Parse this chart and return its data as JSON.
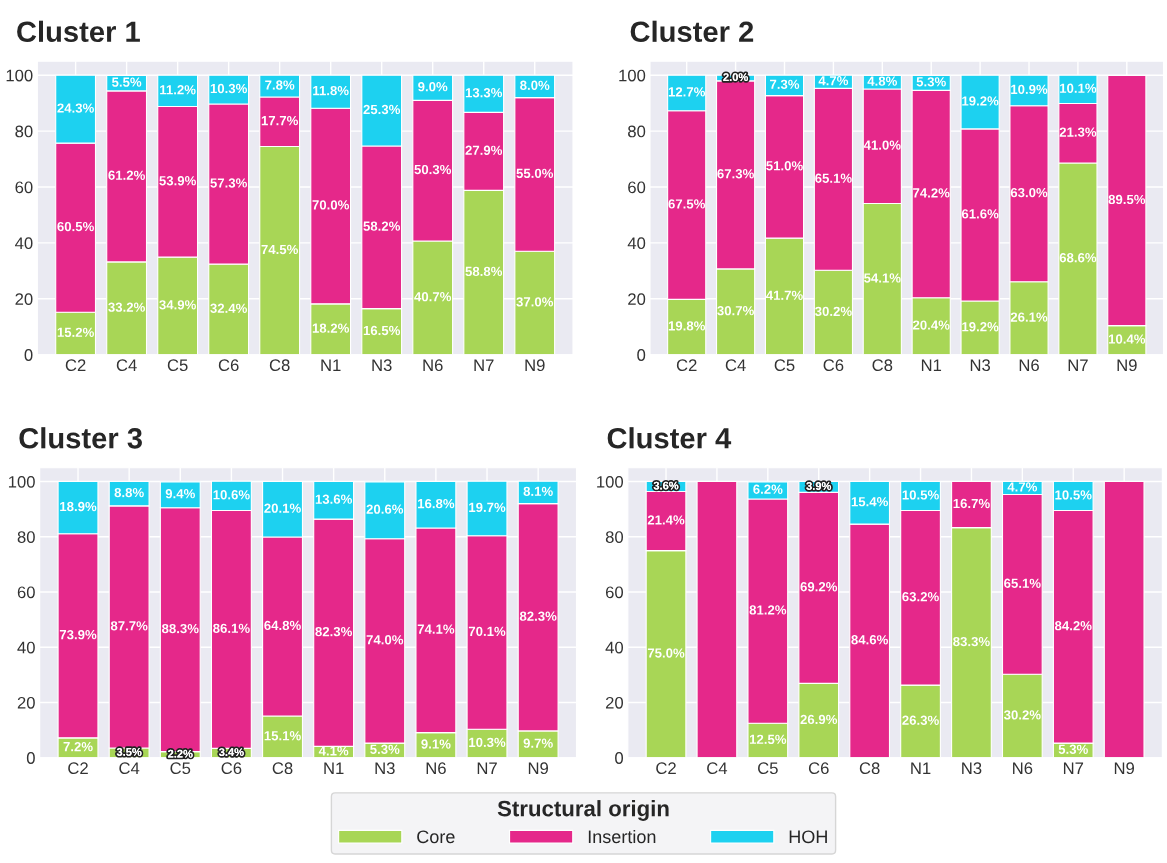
{
  "chart_data": [
    {
      "type": "bar",
      "title": "Cluster 1",
      "stacked": true,
      "grid": true,
      "ylim": [
        0,
        105
      ],
      "yticks": [
        0,
        20,
        40,
        60,
        80,
        100
      ],
      "legend": "bottom",
      "legend_title": "Structural origin",
      "categories": [
        "C2",
        "C4",
        "C5",
        "C6",
        "C8",
        "N1",
        "N3",
        "N6",
        "N7",
        "N9"
      ],
      "series": [
        {
          "name": "Core",
          "color": "#a8d656",
          "values": [
            15.2,
            33.2,
            34.9,
            32.4,
            74.5,
            18.2,
            16.5,
            40.7,
            58.8,
            37.0
          ],
          "value_labels": [
            "15.2%",
            "33.2%",
            "34.9%",
            "32.4%",
            "74.5%",
            "18.2%",
            "16.5%",
            "40.7%",
            "58.8%",
            "37.0%"
          ]
        },
        {
          "name": "Insertion",
          "color": "#e5288a",
          "values": [
            60.5,
            61.2,
            53.9,
            57.3,
            17.7,
            70.0,
            58.2,
            50.3,
            27.9,
            55.0
          ],
          "value_labels": [
            "60.5%",
            "61.2%",
            "53.9%",
            "57.3%",
            "17.7%",
            "70.0%",
            "58.2%",
            "50.3%",
            "27.9%",
            "55.0%"
          ]
        },
        {
          "name": "HOH",
          "color": "#1dd1f0",
          "values": [
            24.3,
            5.5,
            11.2,
            10.3,
            7.8,
            11.8,
            25.3,
            9.0,
            13.3,
            8.0
          ],
          "value_labels": [
            "24.3%",
            "5.5%",
            "11.2%",
            "10.3%",
            "7.8%",
            "11.8%",
            "25.3%",
            "9.0%",
            "13.3%",
            "8.0%"
          ]
        }
      ]
    },
    {
      "type": "bar",
      "title": "Cluster 2",
      "stacked": true,
      "grid": true,
      "ylim": [
        0,
        105
      ],
      "yticks": [
        0,
        20,
        40,
        60,
        80,
        100
      ],
      "categories": [
        "C2",
        "C4",
        "C5",
        "C6",
        "C8",
        "N1",
        "N3",
        "N6",
        "N7",
        "N9"
      ],
      "series": [
        {
          "color": "#a8d656",
          "values": [
            19.8,
            30.7,
            41.7,
            30.2,
            54.1,
            20.4,
            19.2,
            26.1,
            68.6,
            10.4
          ],
          "value_labels": [
            "19.8%",
            "30.7%",
            "41.7%",
            "30.2%",
            "54.1%",
            "20.4%",
            "19.2%",
            "26.1%",
            "68.6%",
            "10.4%"
          ]
        },
        {
          "color": "#e5288a",
          "values": [
            67.5,
            67.3,
            51.0,
            65.1,
            41.0,
            74.2,
            61.6,
            63.0,
            21.3,
            89.5
          ],
          "value_labels": [
            "67.5%",
            "67.3%",
            "51.0%",
            "65.1%",
            "41.0%",
            "74.2%",
            "61.6%",
            "63.0%",
            "21.3%",
            "89.5%"
          ]
        },
        {
          "color": "#1dd1f0",
          "values": [
            12.7,
            2.0,
            7.3,
            4.7,
            4.8,
            5.3,
            19.2,
            10.9,
            10.1,
            0
          ],
          "value_labels": [
            "12.7%",
            "2.0%",
            "7.3%",
            "4.7%",
            "4.8%",
            "5.3%",
            "19.2%",
            "10.9%",
            "10.1%",
            null
          ]
        }
      ]
    },
    {
      "type": "bar",
      "title": "Cluster 3",
      "stacked": true,
      "grid": true,
      "ylim": [
        0,
        105
      ],
      "yticks": [
        0,
        20,
        40,
        60,
        80,
        100
      ],
      "categories": [
        "C2",
        "C4",
        "C5",
        "C6",
        "C8",
        "N1",
        "N3",
        "N6",
        "N7",
        "N9"
      ],
      "series": [
        {
          "color": "#a8d656",
          "values": [
            7.2,
            3.5,
            2.2,
            3.4,
            15.1,
            4.1,
            5.3,
            9.1,
            10.3,
            9.7
          ],
          "value_labels": [
            "7.2%",
            "3.5%",
            "2.2%",
            "3.4%",
            "15.1%",
            "4.1%",
            "5.3%",
            "9.1%",
            "10.3%",
            "9.7%"
          ]
        },
        {
          "color": "#e5288a",
          "values": [
            73.9,
            87.7,
            88.3,
            86.1,
            64.8,
            82.3,
            74.0,
            74.1,
            70.1,
            82.3
          ],
          "value_labels": [
            "73.9%",
            "87.7%",
            "88.3%",
            "86.1%",
            "64.8%",
            "82.3%",
            "74.0%",
            "74.1%",
            "70.1%",
            "82.3%"
          ]
        },
        {
          "color": "#1dd1f0",
          "values": [
            18.9,
            8.8,
            9.4,
            10.6,
            20.1,
            13.6,
            20.6,
            16.8,
            19.7,
            8.1
          ],
          "value_labels": [
            "18.9%",
            "8.8%",
            "9.4%",
            "10.6%",
            "20.1%",
            "13.6%",
            "20.6%",
            "16.8%",
            "19.7%",
            "8.1%"
          ]
        }
      ]
    },
    {
      "type": "bar",
      "title": "Cluster 4",
      "stacked": true,
      "grid": true,
      "ylim": [
        0,
        105
      ],
      "yticks": [
        0,
        20,
        40,
        60,
        80,
        100
      ],
      "categories": [
        "C2",
        "C4",
        "C5",
        "C6",
        "C8",
        "N1",
        "N3",
        "N6",
        "N7",
        "N9"
      ],
      "series": [
        {
          "color": "#a8d656",
          "values": [
            75.0,
            0,
            12.5,
            26.9,
            0,
            26.3,
            83.3,
            30.2,
            5.3,
            0
          ],
          "value_labels": [
            "75.0%",
            null,
            "12.5%",
            "26.9%",
            null,
            "26.3%",
            "83.3%",
            "30.2%",
            "5.3%",
            null
          ]
        },
        {
          "color": "#e5288a",
          "values": [
            21.4,
            100,
            81.2,
            69.2,
            84.6,
            63.2,
            16.7,
            65.1,
            84.2,
            100
          ],
          "value_labels": [
            "21.4%",
            null,
            "81.2%",
            "69.2%",
            "84.6%",
            "63.2%",
            "16.7%",
            "65.1%",
            "84.2%",
            null
          ]
        },
        {
          "color": "#1dd1f0",
          "values": [
            3.6,
            0,
            6.2,
            3.9,
            15.4,
            10.5,
            0,
            4.7,
            10.5,
            0
          ],
          "value_labels": [
            "3.6%",
            null,
            "6.2%",
            "3.9%",
            "15.4%",
            "10.5%",
            null,
            "4.7%",
            "10.5%",
            null
          ]
        }
      ]
    }
  ]
}
